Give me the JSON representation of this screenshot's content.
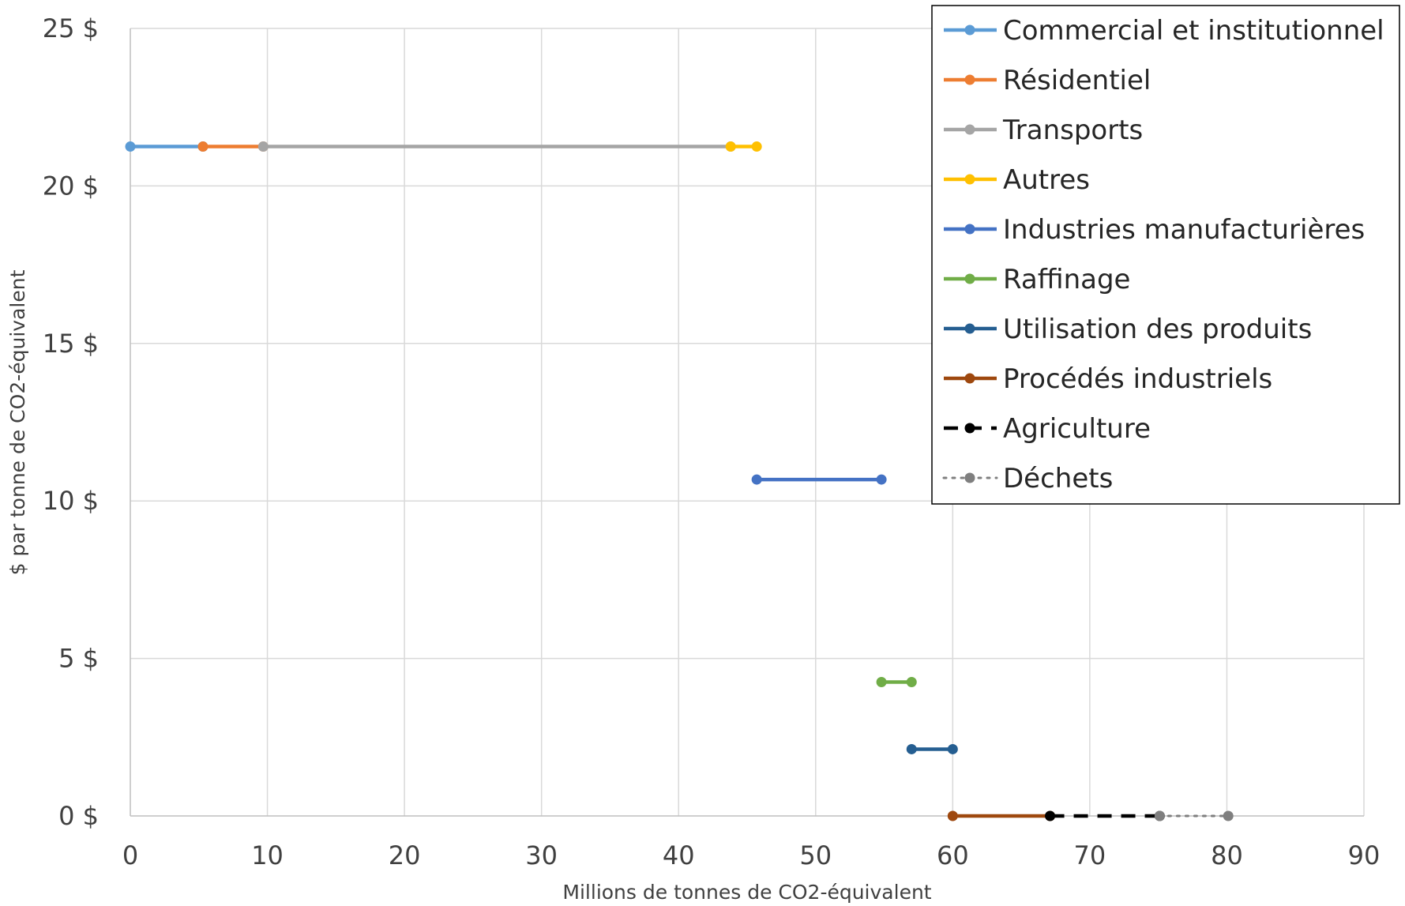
{
  "chart_data": {
    "type": "line",
    "title": "",
    "xlabel": "Millions de tonnes de CO2-équivalent",
    "ylabel": "$ par tonne de CO2-équivalent",
    "xlim": [
      0,
      90
    ],
    "ylim": [
      0,
      25
    ],
    "x_ticks": [
      0,
      10,
      20,
      30,
      40,
      50,
      60,
      70,
      80,
      90
    ],
    "x_tick_labels": [
      "0",
      "10",
      "20",
      "30",
      "40",
      "50",
      "60",
      "70",
      "80",
      "90"
    ],
    "y_ticks": [
      0,
      5,
      10,
      15,
      20,
      25
    ],
    "y_tick_labels": [
      "0 $",
      "5 $",
      "10 $",
      "15 $",
      "20 $",
      "25 $"
    ],
    "grid": true,
    "legend_position": "top-right",
    "series": [
      {
        "name": "Commercial et institutionnel",
        "color": "#5B9BD5",
        "style": "solid",
        "points": [
          [
            0,
            21.25
          ],
          [
            5.3,
            21.25
          ]
        ]
      },
      {
        "name": "Résidentiel",
        "color": "#ED7D31",
        "style": "solid",
        "points": [
          [
            5.3,
            21.25
          ],
          [
            9.7,
            21.25
          ]
        ]
      },
      {
        "name": "Transports",
        "color": "#A5A5A5",
        "style": "solid",
        "points": [
          [
            9.7,
            21.25
          ],
          [
            43.8,
            21.25
          ]
        ]
      },
      {
        "name": "Autres",
        "color": "#FFC000",
        "style": "solid",
        "points": [
          [
            43.8,
            21.25
          ],
          [
            45.7,
            21.25
          ]
        ]
      },
      {
        "name": "Industries manufacturières",
        "color": "#4472C4",
        "style": "solid",
        "points": [
          [
            45.7,
            10.68
          ],
          [
            54.8,
            10.68
          ]
        ]
      },
      {
        "name": "Raffinage",
        "color": "#70AD47",
        "style": "solid",
        "points": [
          [
            54.8,
            4.25
          ],
          [
            57.0,
            4.25
          ]
        ]
      },
      {
        "name": "Utilisation des produits",
        "color": "#255E91",
        "style": "solid",
        "points": [
          [
            57.0,
            2.12
          ],
          [
            60.0,
            2.12
          ]
        ]
      },
      {
        "name": "Procédés industriels",
        "color": "#9E480E",
        "style": "solid",
        "points": [
          [
            60.0,
            0
          ],
          [
            67.1,
            0
          ]
        ]
      },
      {
        "name": "Agriculture",
        "color": "#000000",
        "style": "dashed",
        "points": [
          [
            67.1,
            0
          ],
          [
            75.1,
            0
          ]
        ]
      },
      {
        "name": "Déchets",
        "color": "#7F7F7F",
        "style": "dotted",
        "points": [
          [
            75.1,
            0
          ],
          [
            80.1,
            0
          ]
        ]
      }
    ]
  }
}
